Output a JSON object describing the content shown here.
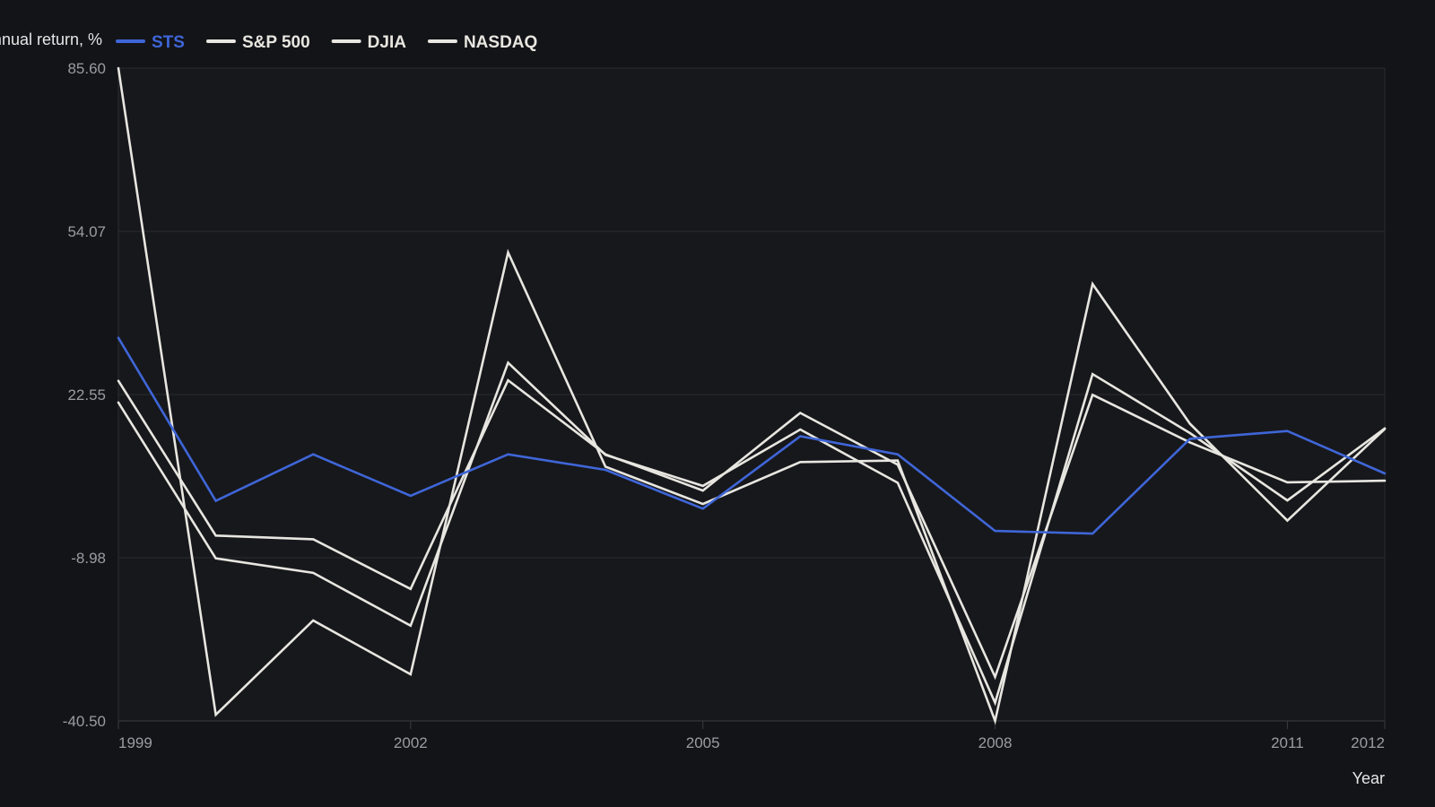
{
  "chart_data": {
    "type": "line",
    "ylabel": "Annual return, %",
    "xlabel": "Year",
    "x": [
      1999,
      2000,
      2001,
      2002,
      2003,
      2004,
      2005,
      2006,
      2007,
      2008,
      2009,
      2010,
      2011,
      2012
    ],
    "xticks": [
      "1999",
      "2002",
      "2005",
      "2008",
      "2011",
      "2012"
    ],
    "yticks": [
      "-40.50",
      "-8.98",
      "22.55",
      "54.07",
      "85.60"
    ],
    "ylim": [
      -40.5,
      85.6
    ],
    "grid": true,
    "legend_position": "top-left",
    "series": [
      {
        "name": "STS",
        "color": "#3f66d8",
        "values": [
          33.5,
          2.0,
          11.0,
          3.0,
          11.0,
          8.0,
          0.5,
          14.5,
          11.0,
          -3.8,
          -4.3,
          14.0,
          15.5,
          7.3
        ]
      },
      {
        "name": "S&P 500",
        "color": "#e8e6e0",
        "values": [
          21.0,
          -9.1,
          -11.9,
          -22.1,
          28.7,
          10.9,
          4.9,
          15.8,
          5.5,
          -37.0,
          26.5,
          15.1,
          2.1,
          16.0
        ]
      },
      {
        "name": "DJIA",
        "color": "#e8e6e0",
        "values": [
          25.2,
          -4.7,
          -5.4,
          -15.0,
          25.3,
          11.0,
          4.0,
          19.0,
          9.0,
          -32.0,
          22.5,
          13.3,
          5.6,
          5.9
        ]
      },
      {
        "name": "NASDAQ",
        "color": "#e8e6e0",
        "values": [
          85.6,
          -39.3,
          -21.1,
          -31.5,
          50.0,
          8.6,
          1.4,
          9.5,
          9.8,
          -40.5,
          43.9,
          16.9,
          -1.8,
          15.9
        ]
      }
    ]
  }
}
